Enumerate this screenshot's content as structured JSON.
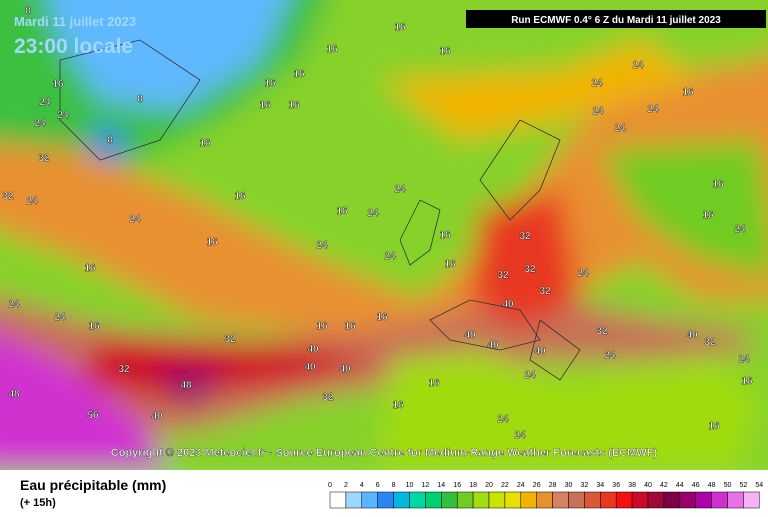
{
  "header": {
    "date": "Mardi 11 juillet 2023",
    "time": "23:00 locale",
    "run": "Run ECMWF 0.4° 6 Z du Mardi 11 juillet 2023"
  },
  "copyright": "Copyright © 2023 Meteociel.fr - Source European Centre for Medium-Range Weather Forecasts (ECMWF)",
  "legend": {
    "title": "Eau précipitable (mm)",
    "lead": "(+ 15h)",
    "ticks": [
      0,
      2,
      4,
      6,
      8,
      10,
      12,
      14,
      16,
      18,
      20,
      22,
      24,
      26,
      28,
      30,
      32,
      34,
      36,
      38,
      40,
      42,
      44,
      46,
      48,
      50,
      52,
      54
    ],
    "colors": [
      "#ffffff",
      "#9ad8ff",
      "#5ab4ff",
      "#2a86f0",
      "#00b8e0",
      "#00d8a8",
      "#00d070",
      "#30c040",
      "#70cc20",
      "#a0dc10",
      "#c8e400",
      "#e8e000",
      "#f0b400",
      "#e89030",
      "#d88060",
      "#c87058",
      "#d85838",
      "#e83820",
      "#f41010",
      "#d00828",
      "#a00838",
      "#800048",
      "#980070",
      "#b000a8",
      "#d030d0",
      "#e870e8",
      "#f8b0f8"
    ]
  },
  "contour_labels": [
    8,
    16,
    16,
    16,
    8,
    16,
    24,
    24,
    24,
    16,
    16,
    16,
    16,
    16,
    8,
    32,
    32,
    24,
    16,
    16,
    16,
    24,
    24,
    16,
    24,
    24,
    16,
    24,
    16,
    32,
    32,
    32,
    40,
    32,
    24,
    24,
    24,
    24,
    24,
    24,
    16,
    16,
    16,
    24,
    16,
    16,
    16,
    24,
    24,
    16,
    32,
    40,
    40,
    40,
    48,
    48,
    56,
    40,
    32,
    32,
    40,
    40,
    40,
    32,
    40,
    32,
    24,
    16,
    24,
    24,
    24,
    16,
    24,
    16,
    16
  ]
}
